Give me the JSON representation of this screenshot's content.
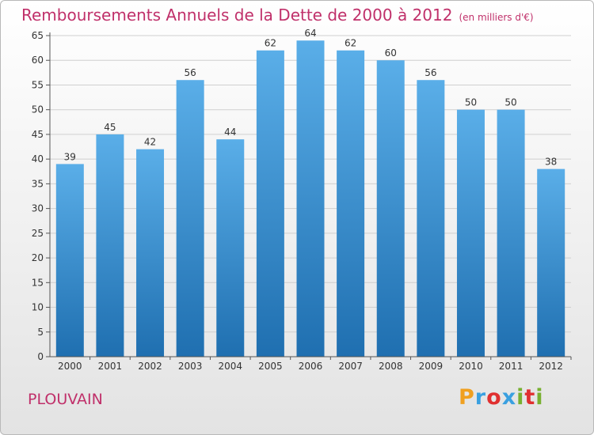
{
  "header": {
    "title": "Remboursements Annuels de la Dette de 2000 à 2012",
    "unit": "(en milliers d'€)"
  },
  "footer": {
    "commune": "PLOUVAIN",
    "logo": {
      "letters": [
        "P",
        "r",
        "o",
        "x",
        "i",
        "t",
        "i"
      ],
      "colors": [
        "#f0a020",
        "#3aa0e0",
        "#e03030",
        "#3aa0e0",
        "#78b030",
        "#e03030",
        "#78b030"
      ]
    }
  },
  "colors": {
    "bar_top": "#5aaee8",
    "bar_bottom": "#1f6fb0",
    "axis": "#555555",
    "grid": "#cfcfcf"
  },
  "chart_data": {
    "type": "bar",
    "title": "Remboursements Annuels de la Dette de 2000 à 2012",
    "ylabel": "",
    "xlabel": "",
    "categories": [
      "2000",
      "2001",
      "2002",
      "2003",
      "2004",
      "2005",
      "2006",
      "2007",
      "2008",
      "2009",
      "2010",
      "2011",
      "2012"
    ],
    "values": [
      39,
      45,
      42,
      56,
      44,
      62,
      64,
      62,
      60,
      56,
      50,
      50,
      38
    ],
    "ylim": [
      0,
      65
    ],
    "yticks": [
      0,
      5,
      10,
      15,
      20,
      25,
      30,
      35,
      40,
      45,
      50,
      55,
      60,
      65
    ],
    "grid": true
  }
}
